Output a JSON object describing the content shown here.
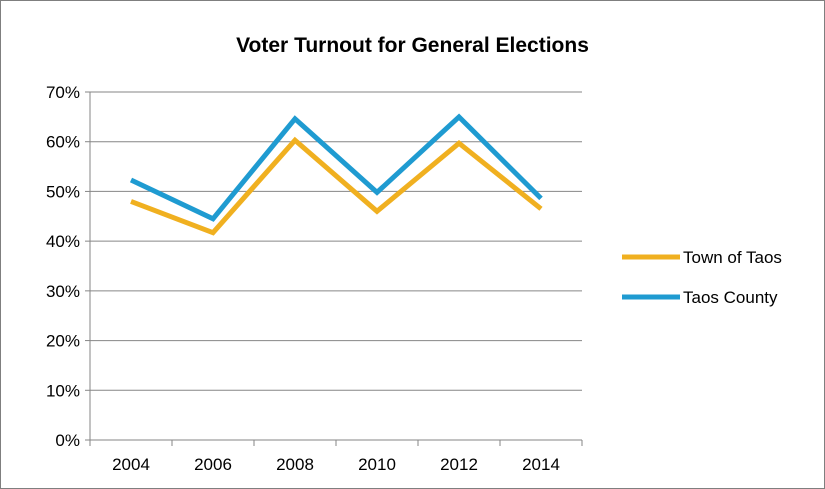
{
  "chart_data": {
    "type": "line",
    "title": "Voter Turnout for General Elections",
    "xlabel": "",
    "ylabel": "",
    "categories": [
      "2004",
      "2006",
      "2008",
      "2010",
      "2012",
      "2014"
    ],
    "ylim": [
      0,
      70
    ],
    "yticks": [
      "0%",
      "10%",
      "20%",
      "30%",
      "40%",
      "50%",
      "60%",
      "70%"
    ],
    "grid": true,
    "legend_position": "right",
    "series": [
      {
        "name": "Town of Taos",
        "color": "#f0b020",
        "values": [
          48,
          41.7,
          60.3,
          46,
          59.7,
          46.5
        ]
      },
      {
        "name": "Taos County",
        "color": "#1f9bd1",
        "values": [
          52.3,
          44.5,
          64.6,
          49.8,
          65,
          48.6
        ]
      }
    ]
  }
}
